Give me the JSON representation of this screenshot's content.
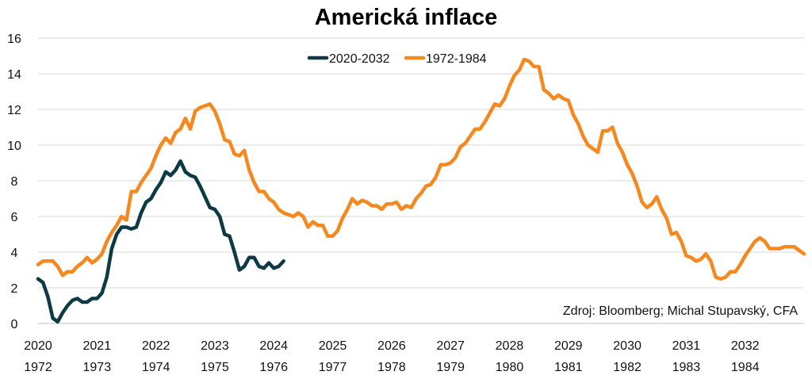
{
  "chart_data": {
    "type": "line",
    "title": "Americká inflace",
    "ylim": [
      0,
      16
    ],
    "yticks": [
      "0",
      "2",
      "4",
      "6",
      "8",
      "10",
      "12",
      "14",
      "16"
    ],
    "xlim": [
      0,
      156
    ],
    "xticks_top": [
      "2020",
      "2021",
      "2022",
      "2023",
      "2024",
      "2025",
      "2026",
      "2027",
      "2028",
      "2029",
      "2030",
      "2031",
      "2032"
    ],
    "xticks_bottom": [
      "1972",
      "1973",
      "1974",
      "1975",
      "1976",
      "1977",
      "1978",
      "1979",
      "1980",
      "1981",
      "1982",
      "1983",
      "1984"
    ],
    "grid": true,
    "legend_position": "top-center",
    "source": "Zdroj: Bloomberg; Michal Stupavský, CFA",
    "series": [
      {
        "name": "2020-2032",
        "color": "#0d3a44",
        "values": [
          2.5,
          2.3,
          1.5,
          0.3,
          0.1,
          0.6,
          1.0,
          1.3,
          1.4,
          1.2,
          1.2,
          1.4,
          1.4,
          1.7,
          2.6,
          4.2,
          5.0,
          5.4,
          5.4,
          5.3,
          5.4,
          6.2,
          6.8,
          7.0,
          7.5,
          7.9,
          8.5,
          8.3,
          8.6,
          9.1,
          8.5,
          8.3,
          8.2,
          7.7,
          7.1,
          6.5,
          6.4,
          6.0,
          5.0,
          4.9,
          4.0,
          3.0,
          3.2,
          3.7,
          3.7,
          3.2,
          3.1,
          3.4,
          3.1,
          3.2,
          3.5
        ]
      },
      {
        "name": "1972-1984",
        "color": "#f5891f",
        "values": [
          3.3,
          3.5,
          3.5,
          3.5,
          3.2,
          2.7,
          2.9,
          2.9,
          3.2,
          3.4,
          3.7,
          3.4,
          3.6,
          3.9,
          4.6,
          5.1,
          5.5,
          6.0,
          5.8,
          7.4,
          7.4,
          7.9,
          8.3,
          8.7,
          9.4,
          10.0,
          10.4,
          10.1,
          10.7,
          10.9,
          11.5,
          10.9,
          11.9,
          12.1,
          12.2,
          12.3,
          11.9,
          11.2,
          10.3,
          10.2,
          9.5,
          9.4,
          9.7,
          8.6,
          7.9,
          7.4,
          7.4,
          7.0,
          6.8,
          6.4,
          6.2,
          6.1,
          6.0,
          6.2,
          6.0,
          5.4,
          5.7,
          5.5,
          5.5,
          4.9,
          4.9,
          5.2,
          5.9,
          6.4,
          7.0,
          6.7,
          6.9,
          6.8,
          6.6,
          6.6,
          6.4,
          6.7,
          6.7,
          6.8,
          6.4,
          6.6,
          6.5,
          7.0,
          7.3,
          7.7,
          7.8,
          8.2,
          8.9,
          8.9,
          9.0,
          9.3,
          9.9,
          10.1,
          10.5,
          10.9,
          10.9,
          11.3,
          11.8,
          12.3,
          12.2,
          12.6,
          13.3,
          13.9,
          14.2,
          14.8,
          14.7,
          14.4,
          14.4,
          13.1,
          12.9,
          12.6,
          12.8,
          12.6,
          12.5,
          11.7,
          11.2,
          10.5,
          10.0,
          9.8,
          9.6,
          10.8,
          10.8,
          11.0,
          10.1,
          9.6,
          8.9,
          8.4,
          7.7,
          6.8,
          6.5,
          6.7,
          7.1,
          6.4,
          5.9,
          5.0,
          5.1,
          4.6,
          3.8,
          3.7,
          3.5,
          3.6,
          3.9,
          3.5,
          2.6,
          2.5,
          2.6,
          2.9,
          2.9,
          3.3,
          3.8,
          4.2,
          4.6,
          4.8,
          4.6,
          4.2,
          4.2,
          4.2,
          4.3,
          4.3,
          4.3,
          4.1,
          3.9
        ]
      }
    ]
  }
}
